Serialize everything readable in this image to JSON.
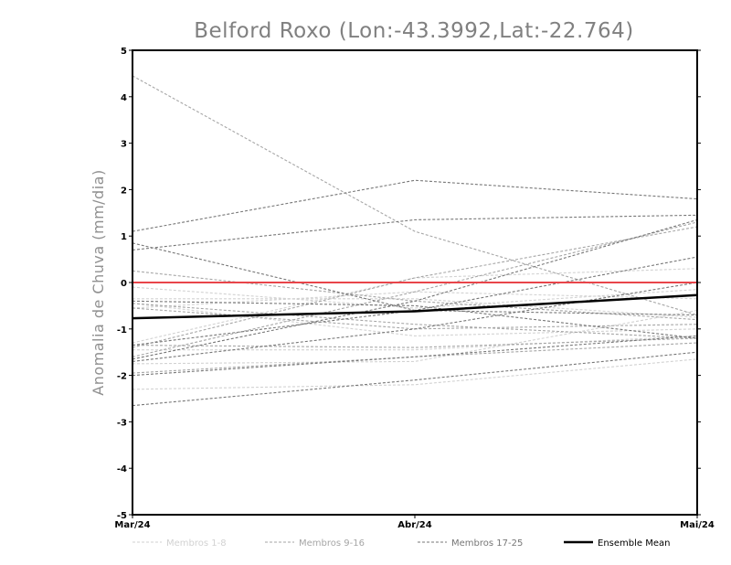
{
  "chart_data": {
    "type": "line",
    "title": "Belford Roxo (Lon:-43.3992,Lat:-22.764)",
    "xlabel": "",
    "ylabel": "Anomalia de Chuva (mm/dia)",
    "categories": [
      "Mar/24",
      "Abr/24",
      "Mai/24"
    ],
    "ylim": [
      -5,
      5
    ],
    "yticks": [
      -5,
      -4,
      -3,
      -2,
      -1,
      0,
      1,
      2,
      3,
      4,
      5
    ],
    "grid": false,
    "legend_position": "bottom",
    "zero_line_color": "#e8454a",
    "groups": [
      {
        "name": "Membros 1-8",
        "color": "#d2d2d2"
      },
      {
        "name": "Membros 9-16",
        "color": "#a6a6a6"
      },
      {
        "name": "Membros 17-25",
        "color": "#777777"
      },
      {
        "name": "Ensemble Mean",
        "color": "#000000"
      }
    ],
    "series": [
      {
        "group": 0,
        "values": [
          -0.35,
          -0.35,
          -0.75
        ]
      },
      {
        "group": 0,
        "values": [
          -0.45,
          -1.15,
          -1.0
        ]
      },
      {
        "group": 0,
        "values": [
          -1.45,
          -1.45,
          -1.15
        ]
      },
      {
        "group": 0,
        "values": [
          -2.3,
          -2.2,
          -1.65
        ]
      },
      {
        "group": 0,
        "values": [
          -0.1,
          -0.55,
          -0.15
        ]
      },
      {
        "group": 0,
        "values": [
          -1.3,
          0.1,
          0.3
        ]
      },
      {
        "group": 0,
        "values": [
          -0.55,
          -0.2,
          -0.35
        ]
      },
      {
        "group": 0,
        "values": [
          -1.75,
          -1.7,
          -0.6
        ]
      },
      {
        "group": 1,
        "values": [
          4.45,
          1.1,
          -0.7
        ]
      },
      {
        "group": 1,
        "values": [
          0.25,
          -0.4,
          -0.8
        ]
      },
      {
        "group": 1,
        "values": [
          -1.4,
          0.1,
          1.2
        ]
      },
      {
        "group": 1,
        "values": [
          -0.45,
          -0.9,
          -1.2
        ]
      },
      {
        "group": 1,
        "values": [
          -1.6,
          -0.2,
          1.3
        ]
      },
      {
        "group": 1,
        "values": [
          -0.55,
          -1.0,
          -0.9
        ]
      },
      {
        "group": 1,
        "values": [
          -1.95,
          -1.6,
          -1.3
        ]
      },
      {
        "group": 1,
        "values": [
          -1.35,
          -1.4,
          -1.2
        ]
      },
      {
        "group": 2,
        "values": [
          1.1,
          2.2,
          1.8
        ]
      },
      {
        "group": 2,
        "values": [
          0.7,
          1.35,
          1.45
        ]
      },
      {
        "group": 2,
        "values": [
          0.85,
          -0.6,
          -0.7
        ]
      },
      {
        "group": 2,
        "values": [
          -1.35,
          -0.6,
          0.55
        ]
      },
      {
        "group": 2,
        "values": [
          -1.65,
          -0.4,
          1.35
        ]
      },
      {
        "group": 2,
        "values": [
          -2.65,
          -2.1,
          -1.5
        ]
      },
      {
        "group": 2,
        "values": [
          -2.0,
          -1.6,
          -1.15
        ]
      },
      {
        "group": 2,
        "values": [
          -1.7,
          -1.0,
          0.0
        ]
      },
      {
        "group": 2,
        "values": [
          -0.4,
          -0.5,
          -1.2
        ]
      },
      {
        "group": 3,
        "values": [
          -0.77,
          -0.62,
          -0.27
        ]
      }
    ]
  }
}
